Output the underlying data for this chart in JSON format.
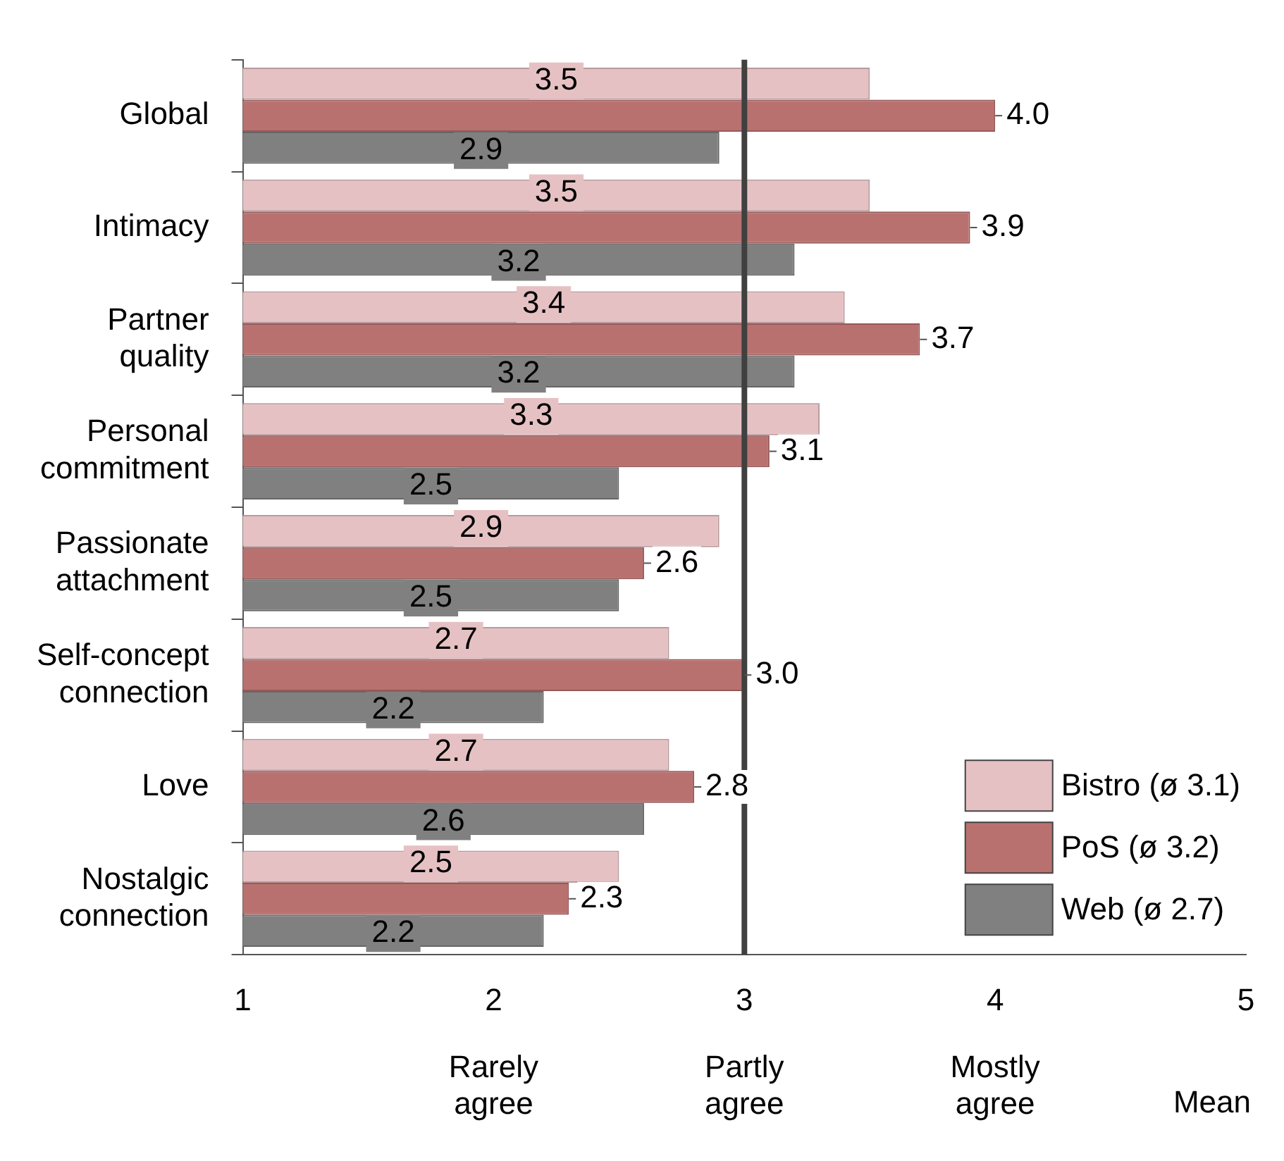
{
  "chart_data": {
    "type": "bar",
    "orientation": "horizontal",
    "xlabel": "Mean",
    "categories": [
      "Global",
      "Intimacy",
      "Partner quality",
      "Personal commitment",
      "Passionate attachment",
      "Self-concept connection",
      "Love",
      "Nostalgic connection"
    ],
    "series": [
      {
        "name": "Bistro (ø 3.1)",
        "color": "#e6c1c3",
        "values": [
          3.5,
          3.5,
          3.4,
          3.3,
          2.9,
          2.7,
          2.7,
          2.5
        ],
        "value_labels": [
          "3.5",
          "3.5",
          "3.4",
          "3.3",
          "2.9",
          "2.7",
          "2.7",
          "2.5"
        ]
      },
      {
        "name": "PoS (ø 3.2)",
        "color": "#b9716f",
        "values": [
          4.0,
          3.9,
          3.7,
          3.1,
          2.6,
          3.0,
          2.8,
          2.3
        ],
        "value_labels": [
          "4.0",
          "3.9",
          "3.7",
          "3.1",
          "2.6",
          "3.0",
          "2.8",
          "2.3"
        ]
      },
      {
        "name": "Web (ø 2.7)",
        "color": "#808080",
        "values": [
          2.9,
          3.2,
          3.2,
          2.5,
          2.5,
          2.2,
          2.6,
          2.2
        ],
        "value_labels": [
          "2.9",
          "3.2",
          "3.2",
          "2.5",
          "2.5",
          "2.2",
          "2.6",
          "2.2"
        ]
      }
    ],
    "xlim": [
      1,
      5
    ],
    "xticks": [
      1,
      2,
      3,
      4,
      5
    ],
    "annotations": [
      "Rarely agree",
      "Partly agree",
      "Mostly agree"
    ],
    "ref_lines": [
      {
        "axis": "x",
        "value": 3,
        "color": "#404040"
      }
    ],
    "grid": false,
    "legend": "bottom right"
  }
}
